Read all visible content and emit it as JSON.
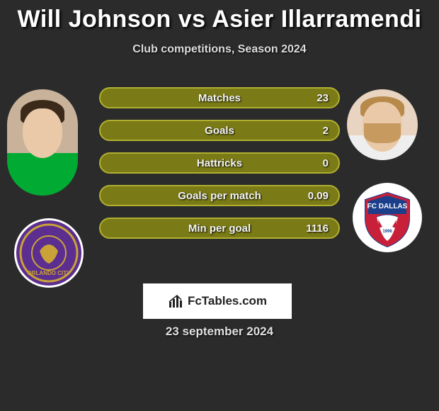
{
  "title": "Will Johnson vs Asier Illarramendi",
  "subtitle": "Club competitions, Season 2024",
  "stats": [
    {
      "label": "Matches",
      "value": "23",
      "fill": "#7a7a16",
      "border": "#b0b030"
    },
    {
      "label": "Goals",
      "value": "2",
      "fill": "#7a7a16",
      "border": "#b0b030"
    },
    {
      "label": "Hattricks",
      "value": "0",
      "fill": "#7a7a16",
      "border": "#b0b030"
    },
    {
      "label": "Goals per match",
      "value": "0.09",
      "fill": "#7a7a16",
      "border": "#b0b030"
    },
    {
      "label": "Min per goal",
      "value": "1116",
      "fill": "#7a7a16",
      "border": "#b0b030"
    }
  ],
  "player_left": {
    "name": "Will Johnson",
    "club": "Orlando City",
    "club_badge_bg": "#5b2e8f",
    "club_badge_ring": "#c9a338"
  },
  "player_right": {
    "name": "Asier Illarramendi",
    "club": "FC Dallas",
    "club_badge_bg": "#ffffff"
  },
  "site": "FcTables.com",
  "date": "23 september 2024",
  "colors": {
    "page_bg": "#2b2b2b",
    "text": "#ffffff"
  }
}
